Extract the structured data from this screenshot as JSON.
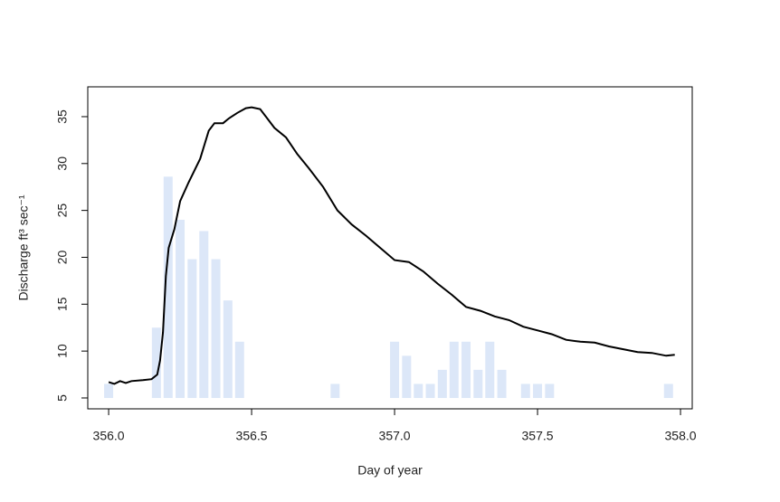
{
  "chart_data": {
    "type": "line",
    "xlabel": "Day of year",
    "ylabel": "Discharge ft³ sec⁻¹",
    "xlim": [
      355.927,
      358.041
    ],
    "ylim": [
      3.84,
      38.18
    ],
    "xticks": [
      {
        "value": 356,
        "label": "356.0"
      },
      356.5,
      {
        "value": 357,
        "label": "357.0"
      },
      357.5,
      {
        "value": 358,
        "label": "358.0"
      }
    ],
    "yticks": [
      5,
      10,
      15,
      20,
      25,
      30,
      35
    ],
    "bars": {
      "color": "#dce7f8",
      "x": [
        356.0,
        356.167,
        356.208,
        356.25,
        356.292,
        356.333,
        356.375,
        356.417,
        356.458,
        356.792,
        357.0,
        357.042,
        357.083,
        357.125,
        357.167,
        357.208,
        357.25,
        357.292,
        357.333,
        357.375,
        357.458,
        357.5,
        357.542,
        357.958
      ],
      "values": [
        6.5,
        12.5,
        28.6,
        24,
        19.8,
        22.8,
        19.8,
        15.4,
        11,
        6.5,
        11,
        9.5,
        6.5,
        6.5,
        8,
        11,
        11,
        8,
        11,
        8,
        6.5,
        6.5,
        6.5,
        6.5
      ]
    },
    "series": [
      {
        "color": "#000000",
        "x": [
          356.0,
          356.02,
          356.04,
          356.06,
          356.08,
          356.12,
          356.15,
          356.17,
          356.18,
          356.19,
          356.2,
          356.21,
          356.23,
          356.25,
          356.28,
          356.32,
          356.35,
          356.37,
          356.4,
          356.42,
          356.45,
          356.48,
          356.5,
          356.53,
          356.55,
          356.58,
          356.62,
          356.66,
          356.7,
          356.75,
          356.8,
          356.85,
          356.9,
          356.95,
          357.0,
          357.05,
          357.1,
          357.15,
          357.2,
          357.25,
          357.3,
          357.35,
          357.4,
          357.45,
          357.5,
          357.55,
          357.6,
          357.65,
          357.7,
          357.75,
          357.8,
          357.85,
          357.9,
          357.95,
          357.98
        ],
        "values": [
          6.7,
          6.5,
          6.8,
          6.6,
          6.8,
          6.9,
          7.0,
          7.5,
          9,
          12,
          18,
          21,
          23,
          26,
          28,
          30.5,
          33.5,
          34.3,
          34.3,
          34.8,
          35.4,
          35.9,
          36,
          35.8,
          35,
          33.8,
          32.8,
          31,
          29.5,
          27.5,
          25,
          23.5,
          22.3,
          21,
          19.7,
          19.5,
          18.5,
          17.2,
          16,
          14.7,
          14.3,
          13.7,
          13.3,
          12.6,
          12.2,
          11.8,
          11.2,
          11,
          10.9,
          10.5,
          10.2,
          9.9,
          9.8,
          9.5,
          9.6
        ]
      }
    ]
  }
}
